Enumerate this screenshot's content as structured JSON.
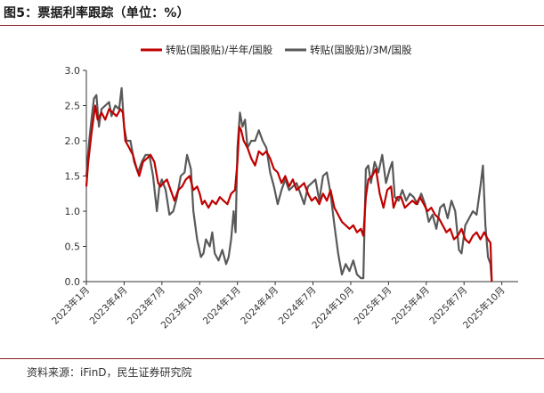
{
  "header": {
    "title": "图5：票据利率跟踪（单位：%）"
  },
  "footer": {
    "source": "资料来源：iFinD，民生证券研究院"
  },
  "colors": {
    "series_red": "#c00000",
    "series_gray": "#595959",
    "frame": "#8a1f1f"
  },
  "chart_data": {
    "type": "line",
    "title": "票据利率跟踪（单位：%）",
    "xlabel": "",
    "ylabel": "",
    "ylim": [
      0,
      3
    ],
    "yticks": [
      0.0,
      0.5,
      1.0,
      1.5,
      2.0,
      2.5,
      3.0
    ],
    "ytick_labels": [
      "0.0",
      "0.5",
      "1.0",
      "1.5",
      "2.0",
      "2.5",
      "3.0"
    ],
    "xlim": [
      0,
      34.3
    ],
    "x_unit": "months since 2023年1月",
    "xticks": [
      0,
      3,
      6,
      9,
      12,
      15,
      18,
      21,
      24,
      27,
      30,
      33
    ],
    "xtick_labels": [
      "2023年1月",
      "2023年4月",
      "2023年7月",
      "2023年10月",
      "2024年1月",
      "2024年4月",
      "2024年7月",
      "2024年10月",
      "2025年1月",
      "2025年4月",
      "2025年7月",
      "2025年10月"
    ],
    "legend_position": "top-center",
    "series": [
      {
        "name": "转贴(国股贴)/半年/国股",
        "color": "#c00000",
        "points": [
          [
            0.0,
            1.35
          ],
          [
            0.15,
            1.7
          ],
          [
            0.4,
            2.1
          ],
          [
            0.7,
            2.5
          ],
          [
            0.9,
            2.3
          ],
          [
            1.2,
            2.4
          ],
          [
            1.5,
            2.3
          ],
          [
            1.8,
            2.45
          ],
          [
            2.1,
            2.4
          ],
          [
            2.4,
            2.35
          ],
          [
            2.7,
            2.45
          ],
          [
            2.9,
            2.4
          ],
          [
            3.1,
            2.0
          ],
          [
            3.4,
            1.9
          ],
          [
            3.7,
            1.8
          ],
          [
            4.0,
            1.6
          ],
          [
            4.2,
            1.5
          ],
          [
            4.5,
            1.7
          ],
          [
            4.8,
            1.75
          ],
          [
            5.1,
            1.8
          ],
          [
            5.4,
            1.7
          ],
          [
            5.7,
            1.4
          ],
          [
            5.9,
            1.35
          ],
          [
            6.1,
            1.4
          ],
          [
            6.4,
            1.45
          ],
          [
            6.7,
            1.3
          ],
          [
            7.0,
            1.15
          ],
          [
            7.3,
            1.3
          ],
          [
            7.6,
            1.35
          ],
          [
            7.9,
            1.45
          ],
          [
            8.2,
            1.5
          ],
          [
            8.5,
            1.3
          ],
          [
            8.8,
            1.35
          ],
          [
            9.0,
            1.25
          ],
          [
            9.2,
            1.1
          ],
          [
            9.4,
            1.15
          ],
          [
            9.7,
            1.05
          ],
          [
            10.0,
            1.15
          ],
          [
            10.3,
            1.1
          ],
          [
            10.6,
            1.2
          ],
          [
            10.9,
            1.15
          ],
          [
            11.2,
            1.1
          ],
          [
            11.5,
            1.25
          ],
          [
            11.8,
            1.3
          ],
          [
            12.0,
            1.7
          ],
          [
            12.15,
            2.2
          ],
          [
            12.3,
            2.15
          ],
          [
            12.5,
            2.0
          ],
          [
            12.8,
            1.9
          ],
          [
            13.1,
            1.75
          ],
          [
            13.4,
            1.65
          ],
          [
            13.7,
            1.85
          ],
          [
            14.0,
            1.8
          ],
          [
            14.3,
            1.85
          ],
          [
            14.6,
            1.75
          ],
          [
            14.9,
            1.6
          ],
          [
            15.2,
            1.55
          ],
          [
            15.5,
            1.4
          ],
          [
            15.8,
            1.5
          ],
          [
            16.1,
            1.35
          ],
          [
            16.4,
            1.45
          ],
          [
            16.7,
            1.3
          ],
          [
            17.0,
            1.35
          ],
          [
            17.3,
            1.4
          ],
          [
            17.6,
            1.25
          ],
          [
            17.9,
            1.15
          ],
          [
            18.2,
            1.2
          ],
          [
            18.5,
            1.1
          ],
          [
            18.8,
            1.25
          ],
          [
            19.1,
            1.15
          ],
          [
            19.4,
            1.3
          ],
          [
            19.7,
            1.05
          ],
          [
            20.0,
            0.95
          ],
          [
            20.3,
            0.85
          ],
          [
            20.6,
            0.8
          ],
          [
            20.9,
            0.75
          ],
          [
            21.2,
            0.8
          ],
          [
            21.5,
            0.7
          ],
          [
            21.8,
            0.75
          ],
          [
            22.0,
            0.65
          ],
          [
            22.2,
            1.2
          ],
          [
            22.4,
            1.45
          ],
          [
            22.7,
            1.5
          ],
          [
            23.0,
            1.6
          ],
          [
            23.3,
            1.25
          ],
          [
            23.6,
            1.05
          ],
          [
            23.9,
            1.3
          ],
          [
            24.2,
            1.35
          ],
          [
            24.4,
            1.05
          ],
          [
            24.7,
            1.2
          ],
          [
            25.0,
            1.2
          ],
          [
            25.3,
            1.05
          ],
          [
            25.6,
            1.1
          ],
          [
            25.9,
            1.15
          ],
          [
            26.2,
            1.1
          ],
          [
            26.5,
            1.2
          ],
          [
            26.8,
            1.1
          ],
          [
            27.1,
            1.0
          ],
          [
            27.4,
            1.05
          ],
          [
            27.7,
            0.95
          ],
          [
            28.0,
            0.9
          ],
          [
            28.3,
            0.8
          ],
          [
            28.6,
            0.7
          ],
          [
            28.9,
            0.75
          ],
          [
            29.2,
            0.6
          ],
          [
            29.5,
            0.65
          ],
          [
            29.8,
            0.75
          ],
          [
            30.1,
            0.6
          ],
          [
            30.4,
            0.55
          ],
          [
            30.7,
            0.65
          ],
          [
            31.0,
            0.7
          ],
          [
            31.3,
            0.6
          ],
          [
            31.6,
            0.7
          ],
          [
            31.9,
            0.6
          ],
          [
            32.1,
            0.55
          ],
          [
            32.2,
            0.0
          ]
        ]
      },
      {
        "name": "转贴(国股贴)/3M/国股",
        "color": "#595959",
        "points": [
          [
            0.0,
            1.5
          ],
          [
            0.2,
            1.95
          ],
          [
            0.4,
            2.3
          ],
          [
            0.6,
            2.6
          ],
          [
            0.8,
            2.65
          ],
          [
            1.0,
            2.2
          ],
          [
            1.2,
            2.45
          ],
          [
            1.5,
            2.5
          ],
          [
            1.8,
            2.55
          ],
          [
            2.0,
            2.35
          ],
          [
            2.3,
            2.5
          ],
          [
            2.6,
            2.45
          ],
          [
            2.8,
            2.75
          ],
          [
            3.0,
            2.2
          ],
          [
            3.2,
            2.0
          ],
          [
            3.5,
            2.0
          ],
          [
            3.8,
            1.7
          ],
          [
            4.1,
            1.55
          ],
          [
            4.4,
            1.7
          ],
          [
            4.7,
            1.8
          ],
          [
            5.0,
            1.8
          ],
          [
            5.3,
            1.5
          ],
          [
            5.6,
            1.0
          ],
          [
            5.8,
            1.35
          ],
          [
            6.0,
            1.45
          ],
          [
            6.3,
            1.3
          ],
          [
            6.6,
            0.95
          ],
          [
            6.9,
            1.0
          ],
          [
            7.2,
            1.2
          ],
          [
            7.5,
            1.5
          ],
          [
            7.8,
            1.55
          ],
          [
            8.0,
            1.8
          ],
          [
            8.3,
            1.6
          ],
          [
            8.5,
            1.0
          ],
          [
            8.8,
            0.6
          ],
          [
            9.1,
            0.35
          ],
          [
            9.3,
            0.4
          ],
          [
            9.5,
            0.6
          ],
          [
            9.8,
            0.5
          ],
          [
            10.0,
            0.7
          ],
          [
            10.2,
            0.4
          ],
          [
            10.5,
            0.3
          ],
          [
            10.8,
            0.45
          ],
          [
            11.1,
            0.25
          ],
          [
            11.3,
            0.35
          ],
          [
            11.5,
            0.6
          ],
          [
            11.7,
            1.0
          ],
          [
            11.85,
            0.7
          ],
          [
            12.0,
            1.9
          ],
          [
            12.2,
            2.4
          ],
          [
            12.4,
            2.2
          ],
          [
            12.6,
            2.3
          ],
          [
            12.8,
            1.9
          ],
          [
            13.1,
            2.0
          ],
          [
            13.4,
            2.0
          ],
          [
            13.7,
            2.15
          ],
          [
            14.0,
            2.0
          ],
          [
            14.3,
            1.9
          ],
          [
            14.6,
            1.55
          ],
          [
            14.9,
            1.35
          ],
          [
            15.2,
            1.1
          ],
          [
            15.5,
            1.3
          ],
          [
            15.8,
            1.45
          ],
          [
            16.1,
            1.3
          ],
          [
            16.4,
            1.35
          ],
          [
            16.7,
            1.4
          ],
          [
            17.0,
            1.25
          ],
          [
            17.3,
            1.1
          ],
          [
            17.6,
            1.35
          ],
          [
            17.9,
            1.4
          ],
          [
            18.2,
            1.45
          ],
          [
            18.5,
            1.15
          ],
          [
            18.8,
            1.5
          ],
          [
            19.1,
            1.55
          ],
          [
            19.4,
            1.25
          ],
          [
            19.7,
            0.8
          ],
          [
            20.0,
            0.4
          ],
          [
            20.3,
            0.1
          ],
          [
            20.6,
            0.25
          ],
          [
            20.9,
            0.15
          ],
          [
            21.2,
            0.3
          ],
          [
            21.5,
            0.1
          ],
          [
            21.8,
            0.05
          ],
          [
            22.0,
            0.05
          ],
          [
            22.2,
            1.6
          ],
          [
            22.4,
            1.65
          ],
          [
            22.6,
            1.4
          ],
          [
            22.9,
            1.7
          ],
          [
            23.2,
            1.55
          ],
          [
            23.5,
            1.8
          ],
          [
            23.8,
            1.4
          ],
          [
            24.1,
            1.6
          ],
          [
            24.3,
            1.7
          ],
          [
            24.5,
            1.2
          ],
          [
            24.8,
            1.15
          ],
          [
            25.1,
            1.3
          ],
          [
            25.4,
            1.15
          ],
          [
            25.7,
            1.25
          ],
          [
            26.0,
            1.2
          ],
          [
            26.3,
            1.1
          ],
          [
            26.6,
            1.25
          ],
          [
            26.9,
            1.1
          ],
          [
            27.2,
            0.85
          ],
          [
            27.5,
            0.95
          ],
          [
            27.8,
            0.75
          ],
          [
            28.1,
            1.05
          ],
          [
            28.4,
            1.1
          ],
          [
            28.7,
            0.9
          ],
          [
            29.0,
            1.15
          ],
          [
            29.3,
            1.0
          ],
          [
            29.6,
            0.45
          ],
          [
            29.8,
            0.4
          ],
          [
            30.1,
            0.8
          ],
          [
            30.4,
            0.9
          ],
          [
            30.7,
            1.0
          ],
          [
            31.0,
            0.95
          ],
          [
            31.3,
            1.35
          ],
          [
            31.5,
            1.65
          ],
          [
            31.7,
            0.8
          ],
          [
            31.9,
            0.35
          ],
          [
            32.1,
            0.25
          ],
          [
            32.2,
            0.0
          ]
        ]
      }
    ]
  }
}
